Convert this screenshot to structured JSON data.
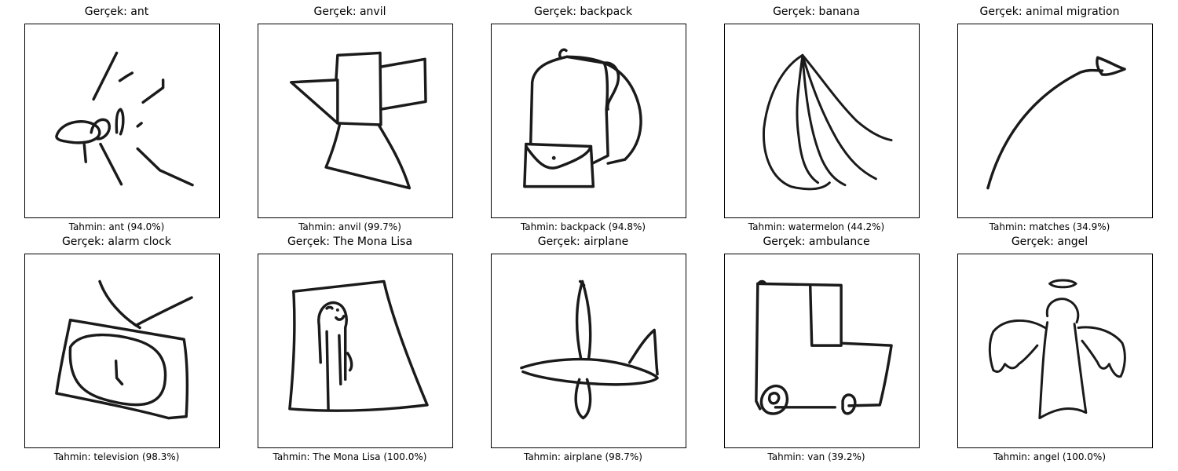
{
  "panels": [
    {
      "title": "Gerçek: ant",
      "caption": "Tahmin: ant (94.0%)",
      "drawing": "ant-doodle"
    },
    {
      "title": "Gerçek: anvil",
      "caption": "Tahmin: anvil (99.7%)",
      "drawing": "anvil-doodle"
    },
    {
      "title": "Gerçek: backpack",
      "caption": "Tahmin: backpack (94.8%)",
      "drawing": "backpack-doodle"
    },
    {
      "title": "Gerçek: banana",
      "caption": "Tahmin: watermelon (44.2%)",
      "drawing": "banana-doodle"
    },
    {
      "title": "Gerçek: animal migration",
      "caption": "Tahmin: matches (34.9%)",
      "drawing": "animal-migration-doodle"
    },
    {
      "title": "Gerçek: alarm clock",
      "caption": "Tahmin: television (98.3%)",
      "drawing": "alarm-clock-doodle"
    },
    {
      "title": "Gerçek: The Mona Lisa",
      "caption": "Tahmin: The Mona Lisa (100.0%)",
      "drawing": "mona-lisa-doodle"
    },
    {
      "title": "Gerçek: airplane",
      "caption": "Tahmin: airplane (98.7%)",
      "drawing": "airplane-doodle"
    },
    {
      "title": "Gerçek: ambulance",
      "caption": "Tahmin: van (39.2%)",
      "drawing": "ambulance-doodle"
    },
    {
      "title": "Gerçek: angel",
      "caption": "Tahmin: angel (100.0%)",
      "drawing": "angel-doodle"
    }
  ]
}
